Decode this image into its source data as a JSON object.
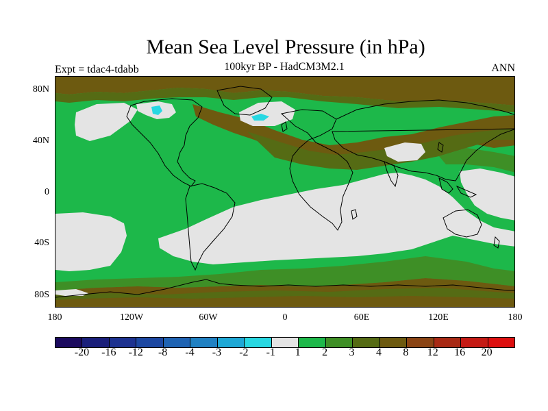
{
  "title": "Mean Sea Level Pressure (in hPa)",
  "subtitle": "100kyr BP - HadCM3M2.1",
  "experiment": "Expt = tdac4-tdabb",
  "season": "ANN",
  "lat_labels": [
    "80N",
    "40N",
    "0",
    "40S",
    "80S"
  ],
  "lon_labels": [
    "180",
    "120W",
    "60W",
    "0",
    "60E",
    "120E",
    "180"
  ],
  "colorbar": {
    "labels": [
      "-20",
      "-16",
      "-12",
      "-8",
      "-4",
      "-3",
      "-2",
      "-1",
      "1",
      "2",
      "3",
      "4",
      "8",
      "12",
      "16",
      "20"
    ],
    "colors": [
      "#1b0a5e",
      "#1a1f7a",
      "#1d3290",
      "#1c47a1",
      "#1f63b3",
      "#2081c3",
      "#1ea8d6",
      "#27d8e2",
      "#e4e4e4",
      "#1db84a",
      "#3e8f26",
      "#556b14",
      "#6d5a10",
      "#8a4414",
      "#a82914",
      "#c41a14",
      "#dd0f0f"
    ]
  },
  "colors": {
    "neutral": "#e4e4e4",
    "green": "#1db84a",
    "olive": "#3e8f26",
    "darkolive": "#556b14",
    "brown": "#6d5a10",
    "cyan": "#27d8e2",
    "coast": "#000000"
  }
}
